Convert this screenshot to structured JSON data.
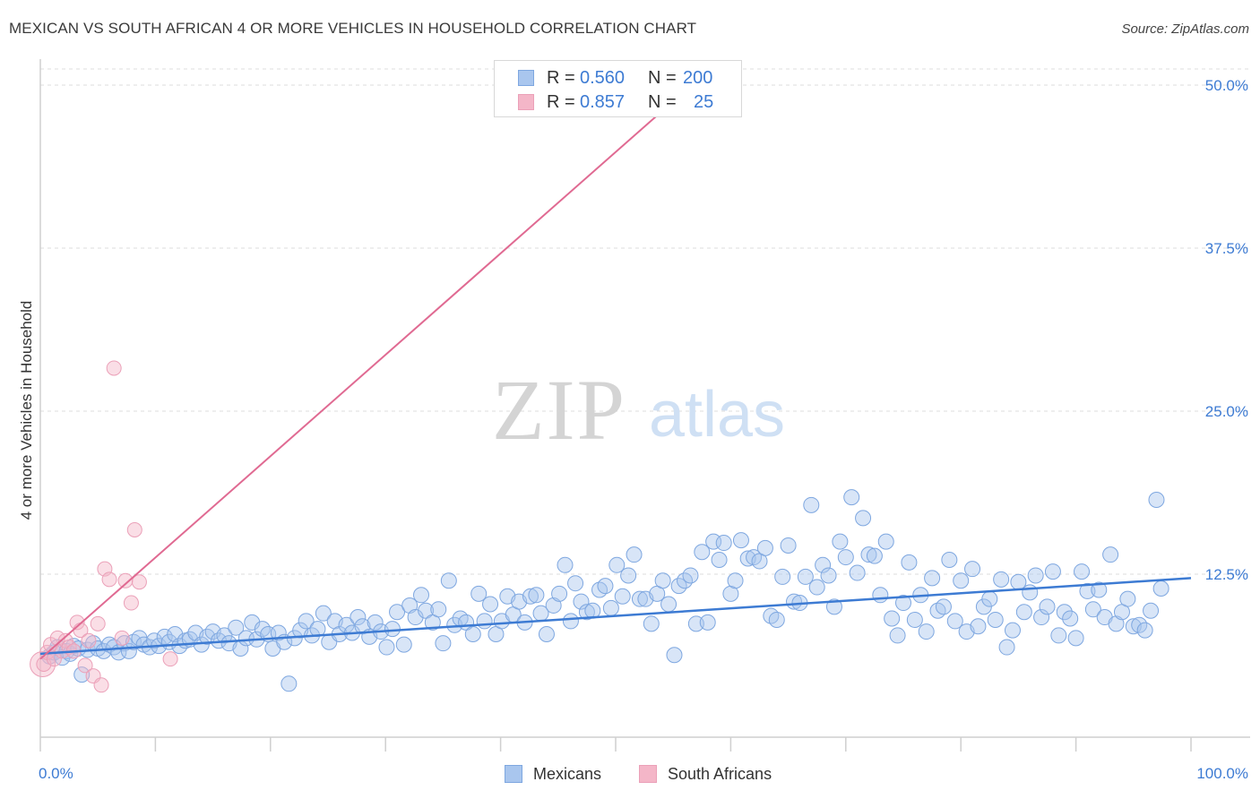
{
  "header": {
    "title": "MEXICAN VS SOUTH AFRICAN 4 OR MORE VEHICLES IN HOUSEHOLD CORRELATION CHART",
    "source": "Source: ZipAtlas.com"
  },
  "watermark": {
    "zip": "ZIP",
    "atlas": "atlas"
  },
  "legend": {
    "rows": [
      {
        "swatch_color": "#a9c6ee",
        "r_label": "R =",
        "r_value": "0.560",
        "n_label": "N =",
        "n_value": "200"
      },
      {
        "swatch_color": "#f4b6c8",
        "r_label": "R =",
        "r_value": "0.857",
        "n_label": "N =",
        "n_value": "25"
      }
    ]
  },
  "bottom_legend": {
    "series1": "Mexicans",
    "series2": "South Africans"
  },
  "chart_data": {
    "type": "scatter",
    "title": "MEXICAN VS SOUTH AFRICAN 4 OR MORE VEHICLES IN HOUSEHOLD CORRELATION CHART",
    "ylabel": "4 or more Vehicles in Household",
    "xlabel": "",
    "xlim": [
      0,
      100
    ],
    "ylim": [
      0,
      50
    ],
    "x_tick_labels": [
      "0.0%",
      "100.0%"
    ],
    "y_ticks": [
      12.5,
      25.0,
      37.5,
      50.0
    ],
    "y_tick_labels": [
      "12.5%",
      "25.0%",
      "37.5%",
      "50.0%"
    ],
    "grid": "horizontal dashed",
    "colors": {
      "mexicans": "#3d7bd3",
      "mexicans_fill": "#a9c6ee",
      "south_africans": "#e06a92",
      "south_africans_fill": "#f4b6c8",
      "axis_text": "#3d7bd3"
    },
    "series": [
      {
        "name": "Mexicans",
        "trend": {
          "x": [
            0,
            100
          ],
          "y": [
            6.4,
            12.2
          ]
        },
        "points": [
          [
            0.8,
            6.2
          ],
          [
            1.2,
            6.5
          ],
          [
            1.5,
            6.9
          ],
          [
            1.9,
            6.1
          ],
          [
            2.3,
            6.6
          ],
          [
            2.6,
            6.4
          ],
          [
            2.9,
            7.0
          ],
          [
            3.3,
            6.8
          ],
          [
            3.6,
            4.8
          ],
          [
            4.1,
            6.7
          ],
          [
            4.6,
            7.2
          ],
          [
            5.0,
            6.8
          ],
          [
            5.5,
            6.6
          ],
          [
            6.0,
            7.1
          ],
          [
            6.4,
            6.9
          ],
          [
            6.8,
            6.5
          ],
          [
            7.3,
            7.2
          ],
          [
            7.7,
            6.6
          ],
          [
            8.1,
            7.3
          ],
          [
            8.6,
            7.6
          ],
          [
            9.0,
            7.1
          ],
          [
            9.5,
            6.9
          ],
          [
            9.9,
            7.4
          ],
          [
            10.3,
            7.0
          ],
          [
            10.8,
            7.7
          ],
          [
            11.2,
            7.3
          ],
          [
            11.7,
            7.9
          ],
          [
            12.1,
            7.0
          ],
          [
            12.6,
            7.4
          ],
          [
            13.0,
            7.5
          ],
          [
            13.5,
            8.0
          ],
          [
            14.0,
            7.1
          ],
          [
            14.5,
            7.7
          ],
          [
            15.0,
            8.1
          ],
          [
            15.5,
            7.4
          ],
          [
            16.0,
            7.8
          ],
          [
            16.4,
            7.2
          ],
          [
            17.0,
            8.4
          ],
          [
            17.4,
            6.8
          ],
          [
            17.9,
            7.6
          ],
          [
            18.4,
            8.8
          ],
          [
            18.8,
            7.5
          ],
          [
            19.3,
            8.3
          ],
          [
            19.8,
            7.9
          ],
          [
            20.2,
            6.8
          ],
          [
            20.7,
            8.0
          ],
          [
            21.2,
            7.3
          ],
          [
            21.6,
            4.1
          ],
          [
            22.1,
            7.6
          ],
          [
            22.6,
            8.2
          ],
          [
            23.1,
            8.9
          ],
          [
            23.6,
            7.8
          ],
          [
            24.1,
            8.3
          ],
          [
            24.6,
            9.5
          ],
          [
            25.1,
            7.3
          ],
          [
            25.6,
            8.9
          ],
          [
            26.0,
            7.9
          ],
          [
            26.6,
            8.6
          ],
          [
            27.1,
            8.0
          ],
          [
            27.6,
            9.2
          ],
          [
            28.0,
            8.5
          ],
          [
            28.6,
            7.7
          ],
          [
            29.1,
            8.8
          ],
          [
            29.6,
            8.1
          ],
          [
            30.1,
            6.9
          ],
          [
            30.6,
            8.3
          ],
          [
            31.0,
            9.6
          ],
          [
            31.6,
            7.1
          ],
          [
            32.1,
            10.1
          ],
          [
            32.6,
            9.2
          ],
          [
            33.1,
            10.9
          ],
          [
            33.5,
            9.7
          ],
          [
            34.1,
            8.8
          ],
          [
            34.6,
            9.8
          ],
          [
            35.0,
            7.2
          ],
          [
            35.5,
            12.0
          ],
          [
            36.0,
            8.6
          ],
          [
            36.5,
            9.1
          ],
          [
            37.0,
            8.8
          ],
          [
            37.6,
            7.9
          ],
          [
            38.1,
            11.0
          ],
          [
            38.6,
            8.9
          ],
          [
            39.1,
            10.2
          ],
          [
            39.6,
            7.9
          ],
          [
            40.1,
            8.9
          ],
          [
            40.6,
            10.8
          ],
          [
            41.1,
            9.4
          ],
          [
            41.6,
            10.4
          ],
          [
            42.1,
            8.8
          ],
          [
            42.6,
            10.8
          ],
          [
            43.1,
            10.9
          ],
          [
            43.5,
            9.5
          ],
          [
            44.0,
            7.9
          ],
          [
            44.6,
            10.1
          ],
          [
            45.1,
            11.0
          ],
          [
            45.6,
            13.2
          ],
          [
            46.1,
            8.9
          ],
          [
            46.5,
            11.8
          ],
          [
            47.0,
            10.4
          ],
          [
            47.5,
            9.6
          ],
          [
            48.0,
            9.7
          ],
          [
            48.6,
            11.3
          ],
          [
            49.1,
            11.6
          ],
          [
            49.6,
            9.9
          ],
          [
            50.1,
            13.2
          ],
          [
            50.6,
            10.8
          ],
          [
            51.1,
            12.4
          ],
          [
            51.6,
            14.0
          ],
          [
            52.1,
            10.6
          ],
          [
            52.6,
            10.6
          ],
          [
            53.1,
            8.7
          ],
          [
            53.6,
            11.0
          ],
          [
            54.1,
            12.0
          ],
          [
            54.6,
            10.2
          ],
          [
            55.1,
            6.3
          ],
          [
            55.5,
            11.6
          ],
          [
            56.0,
            12.0
          ],
          [
            56.5,
            12.4
          ],
          [
            57.0,
            8.7
          ],
          [
            57.5,
            14.2
          ],
          [
            58.0,
            8.8
          ],
          [
            58.5,
            15.0
          ],
          [
            59.0,
            13.6
          ],
          [
            59.4,
            14.9
          ],
          [
            60.0,
            11.0
          ],
          [
            60.4,
            12.0
          ],
          [
            60.9,
            15.1
          ],
          [
            61.5,
            13.7
          ],
          [
            62.0,
            13.8
          ],
          [
            62.5,
            13.5
          ],
          [
            63.0,
            14.5
          ],
          [
            63.5,
            9.3
          ],
          [
            64.0,
            9.0
          ],
          [
            64.5,
            12.3
          ],
          [
            65.0,
            14.7
          ],
          [
            65.5,
            10.4
          ],
          [
            66.0,
            10.3
          ],
          [
            66.5,
            12.3
          ],
          [
            67.0,
            17.8
          ],
          [
            67.5,
            11.5
          ],
          [
            68.0,
            13.2
          ],
          [
            68.5,
            12.4
          ],
          [
            69.0,
            10.0
          ],
          [
            69.5,
            15.0
          ],
          [
            70.0,
            13.8
          ],
          [
            70.5,
            18.4
          ],
          [
            71.0,
            12.6
          ],
          [
            71.5,
            16.8
          ],
          [
            72.0,
            14.0
          ],
          [
            72.5,
            13.9
          ],
          [
            73.0,
            10.9
          ],
          [
            73.5,
            15.0
          ],
          [
            74.0,
            9.1
          ],
          [
            74.5,
            7.8
          ],
          [
            75.0,
            10.3
          ],
          [
            75.5,
            13.4
          ],
          [
            76.0,
            9.0
          ],
          [
            76.5,
            10.9
          ],
          [
            77.0,
            8.1
          ],
          [
            77.5,
            12.2
          ],
          [
            78.0,
            9.7
          ],
          [
            78.5,
            10.0
          ],
          [
            79.0,
            13.6
          ],
          [
            79.5,
            8.9
          ],
          [
            80.0,
            12.0
          ],
          [
            80.5,
            8.1
          ],
          [
            81.0,
            12.9
          ],
          [
            81.5,
            8.5
          ],
          [
            82.0,
            10.0
          ],
          [
            82.5,
            10.6
          ],
          [
            83.0,
            9.0
          ],
          [
            83.5,
            12.1
          ],
          [
            84.0,
            6.9
          ],
          [
            84.5,
            8.2
          ],
          [
            85.0,
            11.9
          ],
          [
            85.5,
            9.6
          ],
          [
            86.0,
            11.1
          ],
          [
            86.5,
            12.4
          ],
          [
            87.0,
            9.2
          ],
          [
            87.5,
            10.0
          ],
          [
            88.0,
            12.7
          ],
          [
            88.5,
            7.8
          ],
          [
            89.0,
            9.6
          ],
          [
            89.5,
            9.1
          ],
          [
            90.0,
            7.6
          ],
          [
            90.5,
            12.7
          ],
          [
            91.0,
            11.2
          ],
          [
            91.5,
            9.8
          ],
          [
            92.0,
            11.3
          ],
          [
            92.5,
            9.2
          ],
          [
            93.0,
            14.0
          ],
          [
            93.5,
            8.7
          ],
          [
            94.0,
            9.6
          ],
          [
            94.5,
            10.6
          ],
          [
            95.0,
            8.5
          ],
          [
            95.5,
            8.6
          ],
          [
            96.0,
            8.2
          ],
          [
            96.5,
            9.7
          ],
          [
            97.0,
            18.2
          ],
          [
            97.4,
            11.4
          ]
        ]
      },
      {
        "name": "South Africans",
        "trend": {
          "x": [
            0,
            56.6
          ],
          "y": [
            6.0,
            50.0
          ]
        },
        "points": [
          [
            0.3,
            5.6
          ],
          [
            0.6,
            6.5
          ],
          [
            0.9,
            7.1
          ],
          [
            1.2,
            6.0
          ],
          [
            1.5,
            7.6
          ],
          [
            1.9,
            6.6
          ],
          [
            2.2,
            7.4
          ],
          [
            2.5,
            6.9
          ],
          [
            2.9,
            6.6
          ],
          [
            3.2,
            8.8
          ],
          [
            3.5,
            8.2
          ],
          [
            3.9,
            5.5
          ],
          [
            4.2,
            7.4
          ],
          [
            4.6,
            4.7
          ],
          [
            5.0,
            8.7
          ],
          [
            5.3,
            4.0
          ],
          [
            5.6,
            12.9
          ],
          [
            6.0,
            12.1
          ],
          [
            6.4,
            28.3
          ],
          [
            7.1,
            7.6
          ],
          [
            7.4,
            12.0
          ],
          [
            7.9,
            10.3
          ],
          [
            8.2,
            15.9
          ],
          [
            8.6,
            11.9
          ],
          [
            11.3,
            6.0
          ]
        ]
      }
    ]
  }
}
